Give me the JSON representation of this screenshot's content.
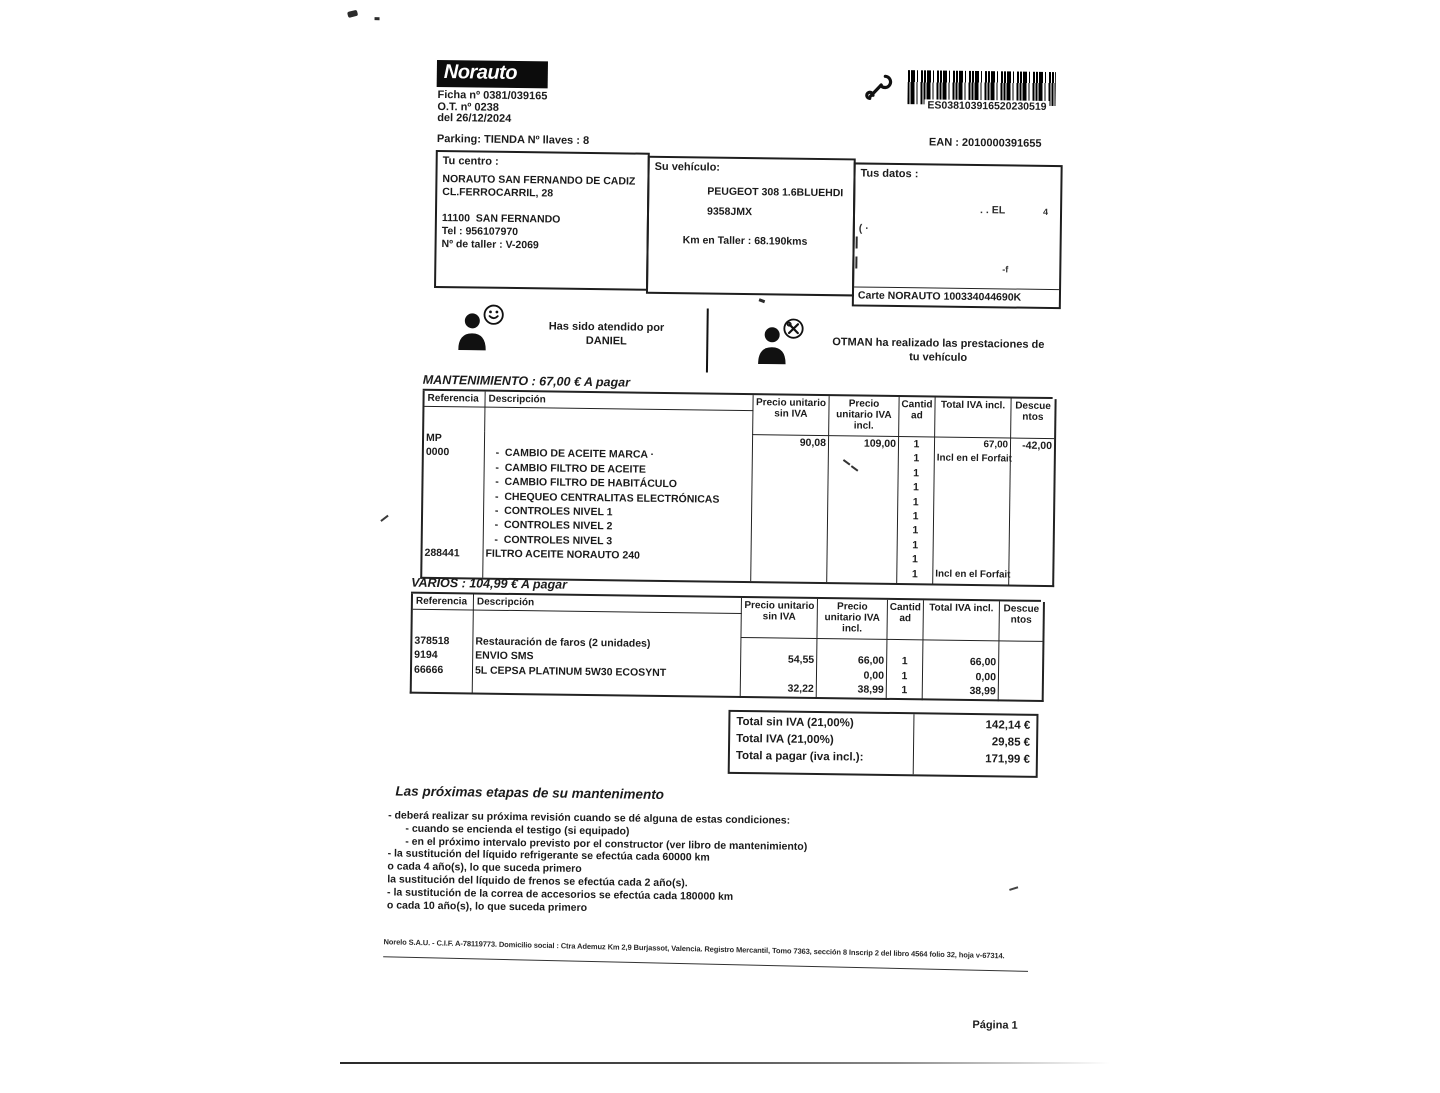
{
  "header": {
    "logo": "Norauto",
    "ficha": "Ficha nº 0381/039165",
    "ot": "O.T. nº 0238",
    "fecha": "del  26/12/2024",
    "parking": "Parking: TIENDA   Nº llaves : 8",
    "barcode_value": "ES038103916520230519",
    "ean": "EAN : 2010000391655"
  },
  "centro": {
    "title": "Tu centro :",
    "lines": [
      "NORAUTO SAN FERNANDO DE CADIZ",
      "CL.FERROCARRIL, 28",
      "",
      "11100  SAN FERNANDO",
      "Tel : 956107970",
      "Nº de taller : V-2069"
    ]
  },
  "vehiculo": {
    "title": "Su vehículo:",
    "modelo": "PEUGEOT 308 1.6BLUEHDI",
    "matricula": "9358JMX",
    "km": "Km en Taller :  68.190kms"
  },
  "datos": {
    "title": "Tus datos :",
    "resto1": ". .    EL",
    "resto2": "4",
    "resto3": "( ·",
    "resto4": "-f",
    "carte": "Carte NORAUTO 100334044690K"
  },
  "atencion": {
    "izquierda_l1": "Has sido atendido por",
    "izquierda_l2": "DANIEL",
    "derecha_l1": "OTMAN ha realizado las prestaciones de",
    "derecha_l2": "tu vehículo"
  },
  "mantenimiento": {
    "titulo": "MANTENIMIENTO : 67,00 € A pagar",
    "cabeceras": {
      "referencia": "Referencia",
      "descripcion": "Descripción",
      "precio_sin": "Precio unitario sin IVA",
      "precio_con": "Precio unitario IVA incl.",
      "cantidad": "Cantidad",
      "total": "Total IVA incl.",
      "descuentos": "Descuentos"
    },
    "col_referencia": [
      "MP",
      "0000",
      "",
      "",
      "",
      "",
      "",
      "",
      "288441",
      ""
    ],
    "col_descripcion": [
      "",
      "   -  CAMBIO DE ACEITE MARCA ·",
      "   -  CAMBIO FILTRO DE ACEITE",
      "   -  CAMBIO FILTRO DE HABITÁCULO",
      "   -  CHEQUEO CENTRALITAS ELECTRÓNICAS",
      "   -  CONTROLES NIVEL 1",
      "   -  CONTROLES NIVEL 2",
      "   -  CONTROLES NIVEL 3",
      "FILTRO ACEITE NORAUTO 240",
      ""
    ],
    "precio_sin": "90,08",
    "precio_con": "109,00",
    "col_cantidad": [
      "1",
      "1",
      "1",
      "1",
      "1",
      "1",
      "1",
      "1",
      "1",
      "1"
    ],
    "col_total": [
      "67,00",
      "Incl en el Forfait",
      "",
      "",
      "",
      "",
      "",
      "",
      "",
      "Incl en el Forfait"
    ],
    "descuento": "-42,00"
  },
  "varios": {
    "titulo": "VARIOS : 104,99 € A pagar",
    "cabeceras": {
      "referencia": "Referencia",
      "descripcion": "Descripción",
      "precio_sin": "Precio unitario sin IVA",
      "precio_con": "Precio unitario IVA incl.",
      "cantidad": "Cantidad",
      "total": "Total IVA incl.",
      "descuentos": "Descuentos"
    },
    "col_referencia": [
      "378518",
      "9194",
      "66666",
      ""
    ],
    "col_descripcion": [
      "Restauración de faros (2 unidades)",
      "ENVIO SMS",
      "5L CEPSA PLATINUM 5W30 ECOSYNT",
      ""
    ],
    "col_precio_sin": [
      "",
      "54,55",
      "",
      "32,22"
    ],
    "col_precio_con": [
      "",
      "66,00",
      "0,00",
      "38,99"
    ],
    "col_cantidad": [
      "",
      "1",
      "1",
      "1"
    ],
    "col_total": [
      "",
      "66,00",
      "0,00",
      "38,99"
    ]
  },
  "totales": {
    "etiquetas": [
      "Total sin IVA (21,00%)",
      "Total IVA (21,00%)",
      "Total a pagar (iva incl.):"
    ],
    "valores": [
      "142,14 €",
      "29,85 €",
      "171,99 €"
    ]
  },
  "proximas": {
    "titulo": "Las próximas etapas de su mantenimento",
    "lineas": [
      "- deberá realizar su próxima revisión cuando se dé alguna de estas condiciones:",
      "      - cuando se encienda el testigo (si equipado)",
      "      - en el próximo intervalo previsto por el constructor (ver libro de mantenimiento)",
      "- la sustitución del líquido refrigerante se efectúa cada 60000 km",
      "o cada 4 año(s), lo que suceda primero",
      "la sustitución del líquido de frenos se efectúa cada 2 año(s).",
      "- la sustitución de la correa de accesorios se efectúa cada 180000 km",
      "o cada 10 año(s), lo que suceda primero"
    ]
  },
  "pie": {
    "legal": "Norelo S.A.U. - C.I.F. A-78119773. Domicilio social : Ctra Ademuz Km 2,9 Burjassot, Valencia. Registro Mercantil, Tomo 7363, sección 8 Inscrip 2 del libro 4564 folio 32, hoja v-67314.",
    "pagina": "Página 1"
  }
}
